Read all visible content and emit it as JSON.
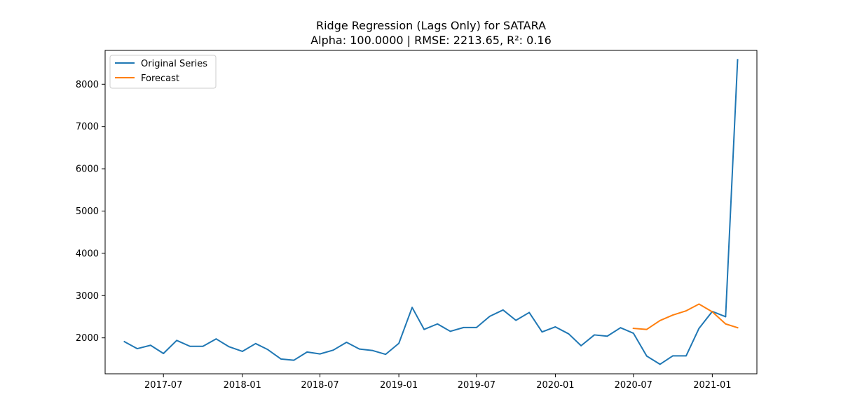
{
  "chart_data": {
    "type": "line",
    "title": "Ridge Regression (Lags Only) for SATARA",
    "subtitle": "Alpha: 100.0000 | RMSE: 2213.65, R²: 0.16",
    "xlabel": "",
    "ylabel": "",
    "x_axis_type": "date",
    "xlim": [
      "2017-02-15",
      "2021-04-15"
    ],
    "ylim": [
      1150,
      8800
    ],
    "x_ticks": [
      {
        "date": "2017-07-01",
        "label": "2017-07"
      },
      {
        "date": "2018-01-01",
        "label": "2018-01"
      },
      {
        "date": "2018-07-01",
        "label": "2018-07"
      },
      {
        "date": "2019-01-01",
        "label": "2019-01"
      },
      {
        "date": "2019-07-01",
        "label": "2019-07"
      },
      {
        "date": "2020-01-01",
        "label": "2020-01"
      },
      {
        "date": "2020-07-01",
        "label": "2020-07"
      },
      {
        "date": "2021-01-01",
        "label": "2021-01"
      }
    ],
    "y_ticks": [
      2000,
      3000,
      4000,
      5000,
      6000,
      7000,
      8000
    ],
    "grid": false,
    "legend_position": "top-left",
    "series": [
      {
        "name": "Original Series",
        "color": "#1f77b4",
        "x": [
          "2017-04-01",
          "2017-05-01",
          "2017-06-01",
          "2017-07-01",
          "2017-08-01",
          "2017-09-01",
          "2017-10-01",
          "2017-11-01",
          "2017-12-01",
          "2018-01-01",
          "2018-02-01",
          "2018-03-01",
          "2018-04-01",
          "2018-05-01",
          "2018-06-01",
          "2018-07-01",
          "2018-08-01",
          "2018-09-01",
          "2018-10-01",
          "2018-11-01",
          "2018-12-01",
          "2019-01-01",
          "2019-02-01",
          "2019-03-01",
          "2019-04-01",
          "2019-05-01",
          "2019-06-01",
          "2019-07-01",
          "2019-08-01",
          "2019-09-01",
          "2019-10-01",
          "2019-11-01",
          "2019-12-01",
          "2020-01-01",
          "2020-02-01",
          "2020-03-01",
          "2020-04-01",
          "2020-05-01",
          "2020-06-01",
          "2020-07-01",
          "2020-08-01",
          "2020-09-01",
          "2020-10-01",
          "2020-11-01",
          "2020-12-01",
          "2021-01-01",
          "2021-02-01",
          "2021-03-01"
        ],
        "values": [
          1910,
          1745,
          1825,
          1630,
          1940,
          1800,
          1800,
          1975,
          1790,
          1680,
          1865,
          1725,
          1500,
          1470,
          1665,
          1620,
          1710,
          1895,
          1735,
          1700,
          1610,
          1870,
          2720,
          2200,
          2330,
          2155,
          2245,
          2245,
          2510,
          2660,
          2415,
          2600,
          2140,
          2260,
          2095,
          1815,
          2070,
          2040,
          2240,
          2110,
          1570,
          1375,
          1575,
          1575,
          2225,
          2625,
          2500,
          8580
        ]
      },
      {
        "name": "Forecast",
        "color": "#ff7f0e",
        "x": [
          "2020-07-01",
          "2020-08-01",
          "2020-09-01",
          "2020-10-01",
          "2020-11-01",
          "2020-12-01",
          "2021-01-01",
          "2021-02-01",
          "2021-03-01"
        ],
        "values": [
          2225,
          2200,
          2410,
          2540,
          2640,
          2800,
          2615,
          2330,
          2240
        ]
      }
    ]
  }
}
